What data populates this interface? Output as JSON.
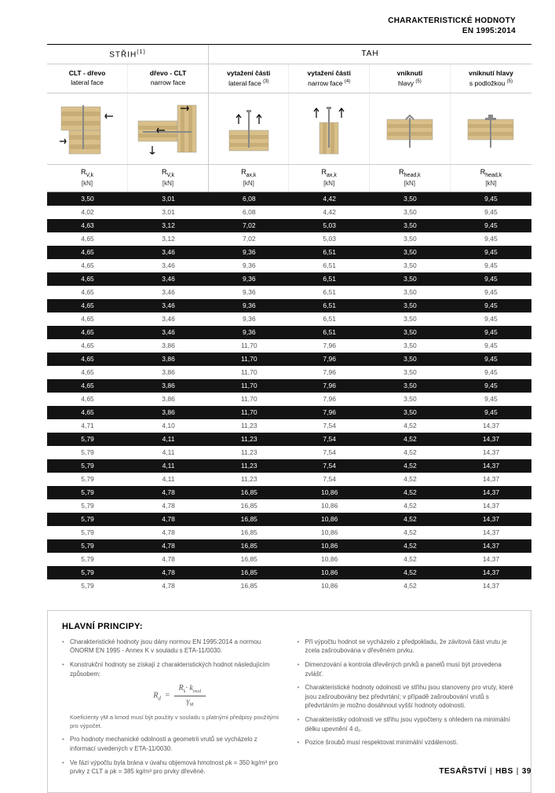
{
  "header": {
    "line1": "CHARAKTERISTICKÉ HODNOTY",
    "line2": "EN 1995:2014"
  },
  "groups": {
    "shear": {
      "label": "STŘIH",
      "sup": "(1)"
    },
    "tension": {
      "label": "TAH"
    }
  },
  "columns": [
    {
      "title_cz": "CLT - dřevo",
      "title_en": "lateral face",
      "symbol": "R",
      "sub": "V,k",
      "unit": "[kN]"
    },
    {
      "title_cz": "dřevo - CLT",
      "title_en": "narrow face",
      "symbol": "R",
      "sub": "V,k",
      "unit": "[kN]"
    },
    {
      "title_cz": "vytažení části",
      "title_en": "lateral face",
      "sup": "(3)",
      "symbol": "R",
      "sub": "ax,k",
      "unit": "[kN]"
    },
    {
      "title_cz": "vytažení části",
      "title_en": "narrow face",
      "sup": "(4)",
      "symbol": "R",
      "sub": "ax,k",
      "unit": "[kN]"
    },
    {
      "title_cz": "vniknutí",
      "title_en": "hlavy",
      "sup": "(5)",
      "symbol": "R",
      "sub": "head,k",
      "unit": "[kN]"
    },
    {
      "title_cz": "vniknutí hlavy",
      "title_en": "s podložkou",
      "sup": "(5)",
      "symbol": "R",
      "sub": "head,k",
      "unit": "[kN]"
    }
  ],
  "diagrams": {
    "wood_color": "#d9c08a",
    "wood_dark": "#c8ae76",
    "fastener": "#888"
  },
  "rows": [
    [
      "3,50",
      "3,01",
      "6,08",
      "4,42",
      "3,50",
      "9,45"
    ],
    [
      "4,02",
      "3,01",
      "6,08",
      "4,42",
      "3,50",
      "9,45"
    ],
    [
      "4,63",
      "3,12",
      "7,02",
      "5,03",
      "3,50",
      "9,45"
    ],
    [
      "4,65",
      "3,12",
      "7,02",
      "5,03",
      "3,50",
      "9,45"
    ],
    [
      "4,65",
      "3,46",
      "9,36",
      "6,51",
      "3,50",
      "9,45"
    ],
    [
      "4,65",
      "3,46",
      "9,36",
      "6,51",
      "3,50",
      "9,45"
    ],
    [
      "4,65",
      "3,46",
      "9,36",
      "6,51",
      "3,50",
      "9,45"
    ],
    [
      "4,65",
      "3,46",
      "9,36",
      "6,51",
      "3,50",
      "9,45"
    ],
    [
      "4,65",
      "3,46",
      "9,36",
      "6,51",
      "3,50",
      "9,45"
    ],
    [
      "4,65",
      "3,46",
      "9,36",
      "6,51",
      "3,50",
      "9,45"
    ],
    [
      "4,65",
      "3,46",
      "9,36",
      "6,51",
      "3,50",
      "9,45"
    ],
    [
      "4,65",
      "3,86",
      "11,70",
      "7,96",
      "3,50",
      "9,45"
    ],
    [
      "4,65",
      "3,86",
      "11,70",
      "7,96",
      "3,50",
      "9,45"
    ],
    [
      "4,65",
      "3,86",
      "11,70",
      "7,96",
      "3,50",
      "9,45"
    ],
    [
      "4,65",
      "3,86",
      "11,70",
      "7,96",
      "3,50",
      "9,45"
    ],
    [
      "4,65",
      "3,86",
      "11,70",
      "7,96",
      "3,50",
      "9,45"
    ],
    [
      "4,65",
      "3,86",
      "11,70",
      "7,96",
      "3,50",
      "9,45"
    ],
    [
      "4,71",
      "4,10",
      "11,23",
      "7,54",
      "4,52",
      "14,37"
    ],
    [
      "5,79",
      "4,11",
      "11,23",
      "7,54",
      "4,52",
      "14,37"
    ],
    [
      "5,79",
      "4,11",
      "11,23",
      "7,54",
      "4,52",
      "14,37"
    ],
    [
      "5,79",
      "4,11",
      "11,23",
      "7,54",
      "4,52",
      "14,37"
    ],
    [
      "5,79",
      "4,11",
      "11,23",
      "7,54",
      "4,52",
      "14,37"
    ],
    [
      "5,79",
      "4,78",
      "16,85",
      "10,86",
      "4,52",
      "14,37"
    ],
    [
      "5,79",
      "4,78",
      "16,85",
      "10,86",
      "4,52",
      "14,37"
    ],
    [
      "5,79",
      "4,78",
      "16,85",
      "10,86",
      "4,52",
      "14,37"
    ],
    [
      "5,79",
      "4,78",
      "16,85",
      "10,86",
      "4,52",
      "14,37"
    ],
    [
      "5,79",
      "4,78",
      "16,85",
      "10,86",
      "4,52",
      "14,37"
    ],
    [
      "5,79",
      "4,78",
      "16,85",
      "10,86",
      "4,52",
      "14,37"
    ],
    [
      "5,79",
      "4,78",
      "16,85",
      "10,86",
      "4,52",
      "14,37"
    ],
    [
      "5,79",
      "4,78",
      "16,85",
      "10,86",
      "4,52",
      "14,37"
    ]
  ],
  "principles": {
    "title": "HLAVNÍ PRINCIPY:",
    "left": [
      "Charakteristické hodnoty jsou dány normou EN 1995:2014 a normou ÖNORM EN 1995 - Annex K v souladu s ETA-11/0030.",
      "Konstrukční hodnoty se získají z charakteristických hodnot následujícím způsobem:"
    ],
    "formula": {
      "Rd": "R",
      "d": "d",
      "top1": "R",
      "top_sub": "k",
      "top2": "· k",
      "top2_sub": "mod",
      "bot": "γ",
      "bot_sub": "M"
    },
    "formula_note": "Koeficienty γM a kmod musí být použity v souladu s platnými předpisy použitými pro výpočet.",
    "left2": [
      "Pro hodnoty mechanické odolnosti a geometrii vrutů se vycházelo z informací uvedených v ETA-11/0030.",
      "Ve fázi výpočtu byla brána v úvahu objemová hmotnost ρk = 350 kg/m³ pro prvky z CLT a ρk = 385 kg/m³ pro prvky dřevěné."
    ],
    "right": [
      "Při výpočtu hodnot se vycházelo z předpokladu, že závitová část vrutu je zcela zašroubována v dřevěném prvku.",
      "Dimenzování a kontrola dřevěných prvků a panelů musí být provedena zvlášť.",
      "Charakteristické hodnoty odolnosti ve střihu jsou stanoveny pro vruty, které jsou zašroubovány bez předvrtání; v případě zašroubování vrutů s předvrtáním je možno dosáhnout vyšší hodnoty odolnosti.",
      "Charakteristiky odolnosti ve střihu jsou vypočteny s ohledem na minimální délku upevnění 4 d₁.",
      "Pozice šroubů musí respektovat minimální vzdálenosti."
    ]
  },
  "footer": {
    "a": "TESAŘSTVÍ",
    "b": "HBS",
    "page": "39"
  }
}
